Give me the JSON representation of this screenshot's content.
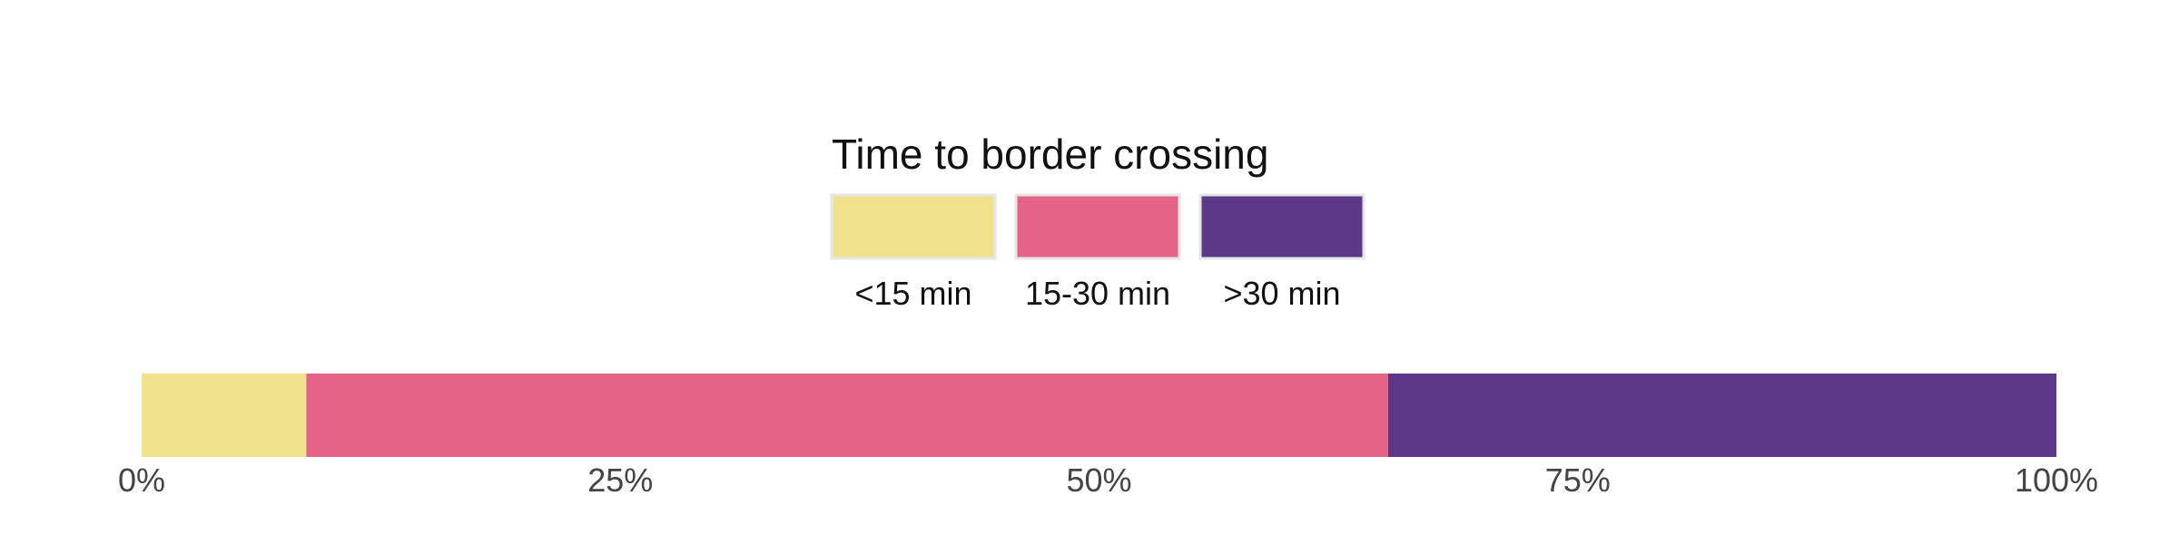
{
  "chart_data": {
    "type": "bar",
    "orientation": "horizontal",
    "stacked": true,
    "normalized": true,
    "categories": [
      ""
    ],
    "series": [
      {
        "name": "<15 min",
        "values": [
          8.6
        ],
        "color": "#f0e28c"
      },
      {
        "name": "15-30 min",
        "values": [
          56.5
        ],
        "color": "#e56386"
      },
      {
        "name": ">30 min",
        "values": [
          34.9
        ],
        "color": "#5d3889"
      }
    ],
    "legend": {
      "title": "Time to border crossing",
      "placement": "top-center"
    },
    "x_ticks": [
      0,
      25,
      50,
      75,
      100
    ],
    "x_tick_labels": [
      "0%",
      "25%",
      "50%",
      "75%",
      "100%"
    ],
    "xlim": [
      0,
      100
    ],
    "title": "",
    "xlabel": "",
    "ylabel": "",
    "grid": false
  }
}
